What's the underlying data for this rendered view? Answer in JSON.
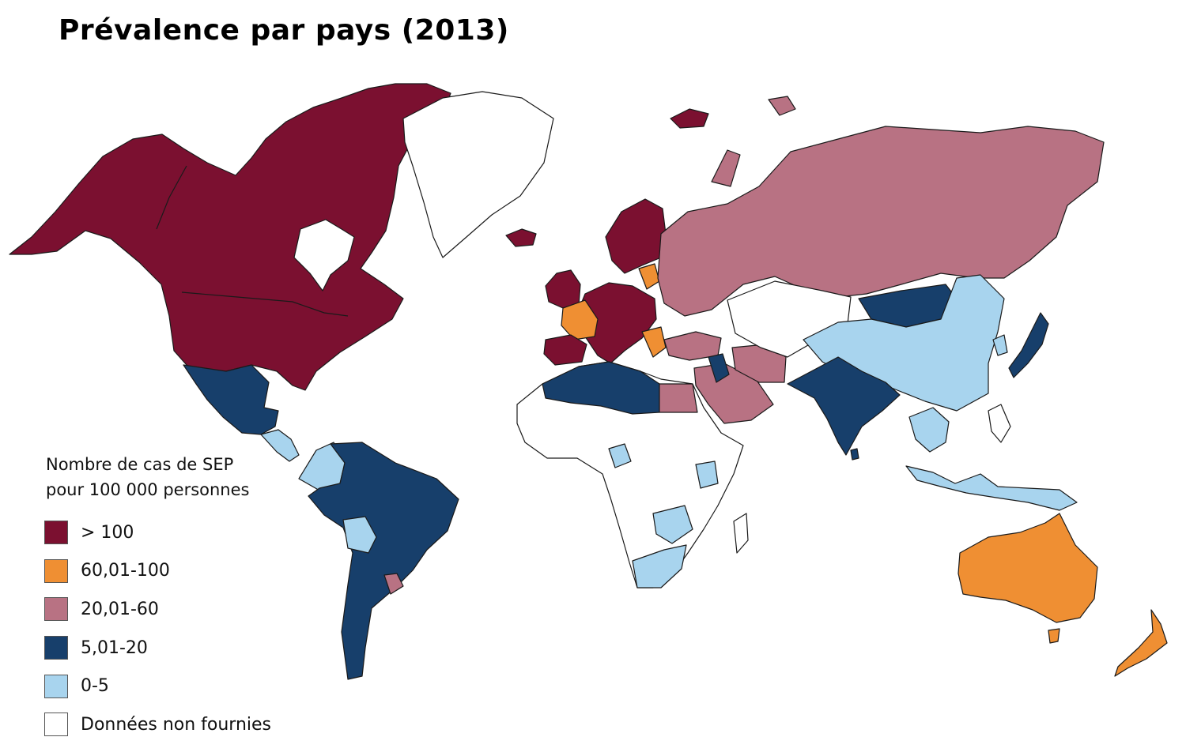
{
  "title": "Prévalence par pays (2013)",
  "legend": {
    "title_line1": "Nombre de cas de SEP",
    "title_line2": "pour 100 000 personnes",
    "items": [
      {
        "label": "> 100",
        "color": "#7b1030"
      },
      {
        "label": "60,01-100",
        "color": "#ef8f33"
      },
      {
        "label": "20,01-60",
        "color": "#b87283"
      },
      {
        "label": "5,01-20",
        "color": "#173f6b"
      },
      {
        "label": "0-5",
        "color": "#a8d4ee"
      },
      {
        "label": "Données non fournies",
        "color": "#ffffff"
      }
    ]
  },
  "chart_data": {
    "type": "choropleth",
    "title": "Prévalence par pays (2013)",
    "legend_title": "Nombre de cas de SEP pour 100 000 personnes",
    "legend_position": "bottom-left",
    "categories": [
      "> 100",
      "60,01-100",
      "20,01-60",
      "5,01-20",
      "0-5",
      "Données non fournies"
    ],
    "category_colors": [
      "#7b1030",
      "#ef8f33",
      "#b87283",
      "#173f6b",
      "#a8d4ee",
      "#ffffff"
    ]
  }
}
